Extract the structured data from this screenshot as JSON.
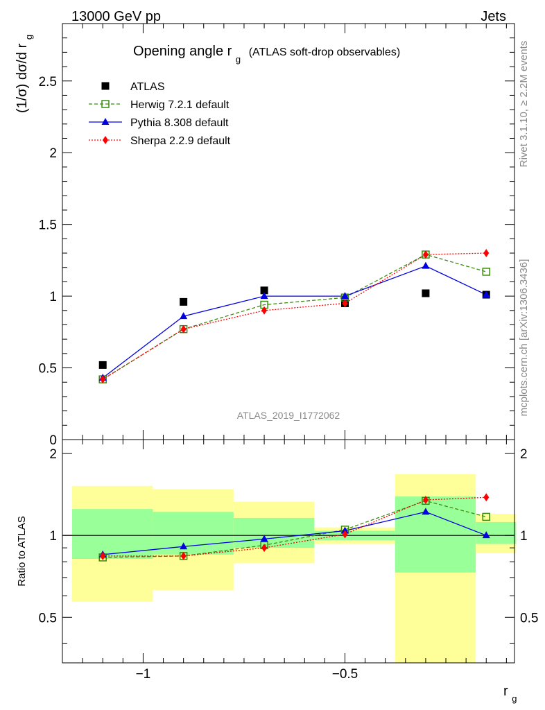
{
  "header": {
    "left": "13000 GeV pp",
    "right": "Jets"
  },
  "side_text": {
    "rivet": "Rivet 3.1.10, ≥ 2.2M events",
    "source": "mcplots.cern.ch [arXiv:1306.3436]"
  },
  "analysis_id": "ATLAS_2019_I1772062",
  "chart_data": [
    {
      "type": "line",
      "title": "Opening angle r",
      "title_sub": "g",
      "title_extra": "(ATLAS soft-drop observables)",
      "ylabel": "(1/σ) dσ/d r",
      "ylabel_sub": "g",
      "xlabel": "r",
      "xlabel_sub": "g",
      "xlim": [
        -1.2,
        -0.08
      ],
      "ylim": [
        0,
        2.9
      ],
      "yticks": [
        0,
        0.5,
        1,
        1.5,
        2,
        2.5
      ],
      "ytick_labels": [
        "0",
        "0.5",
        "1",
        "1.5",
        "2",
        "2.5"
      ],
      "legend_position": "top-left",
      "x": [
        -1.1,
        -0.9,
        -0.7,
        -0.5,
        -0.3,
        -0.15
      ],
      "series": [
        {
          "name": "ATLAS",
          "style": "data",
          "color": "#000000",
          "marker": "square",
          "values": [
            0.52,
            0.96,
            1.04,
            0.95,
            1.02,
            1.01
          ]
        },
        {
          "name": "Herwig 7.2.1 default",
          "style": "dashed",
          "color": "#3a8a10",
          "marker": "open-square",
          "values": [
            0.42,
            0.77,
            0.94,
            0.99,
            1.29,
            1.17
          ]
        },
        {
          "name": "Pythia 8.308 default",
          "style": "solid",
          "color": "#0000e0",
          "marker": "triangle",
          "values": [
            0.43,
            0.86,
            1.0,
            1.0,
            1.21,
            1.01
          ]
        },
        {
          "name": "Sherpa 2.2.9 default",
          "style": "dotted",
          "color": "#ff0000",
          "marker": "diamond",
          "values": [
            0.42,
            0.77,
            0.9,
            0.95,
            1.29,
            1.3
          ]
        }
      ]
    },
    {
      "type": "line",
      "ylabel": "Ratio to ATLAS",
      "xlabel": "r",
      "xlabel_sub": "g",
      "xlim": [
        -1.2,
        -0.08
      ],
      "ylim": [
        0.34,
        2.25
      ],
      "yticks": [
        0.5,
        1,
        2
      ],
      "ytick_labels": [
        "0.5",
        "1",
        "2"
      ],
      "xticks": [
        -1,
        -0.5
      ],
      "xtick_labels": [
        "−1",
        "−0.5"
      ],
      "x": [
        -1.1,
        -0.9,
        -0.7,
        -0.5,
        -0.3,
        -0.15
      ],
      "bands": [
        {
          "x0": -1.2,
          "x1": -1.0,
          "yellow": [
            0.57,
            1.52
          ],
          "green": [
            0.82,
            1.25
          ]
        },
        {
          "x0": -1.0,
          "x1": -0.8,
          "yellow": [
            0.63,
            1.48
          ],
          "green": [
            0.85,
            1.22
          ]
        },
        {
          "x0": -0.8,
          "x1": -0.6,
          "yellow": [
            0.79,
            1.33
          ],
          "green": [
            0.9,
            1.16
          ]
        },
        {
          "x0": -0.6,
          "x1": -0.4,
          "yellow": [
            0.93,
            1.07
          ],
          "green": [
            0.96,
            1.04
          ]
        },
        {
          "x0": -0.4,
          "x1": -0.2,
          "yellow": [
            0.34,
            1.68
          ],
          "green": [
            0.73,
            1.39
          ]
        },
        {
          "x0": -0.2,
          "x1": -0.1,
          "yellow": [
            0.86,
            1.2
          ],
          "green": [
            0.93,
            1.12
          ]
        }
      ],
      "series": [
        {
          "name": "Herwig 7.2.1 default",
          "style": "dashed",
          "color": "#3a8a10",
          "marker": "open-square",
          "values": [
            0.83,
            0.84,
            0.92,
            1.05,
            1.34,
            1.17
          ]
        },
        {
          "name": "Pythia 8.308 default",
          "style": "solid",
          "color": "#0000e0",
          "marker": "triangle",
          "values": [
            0.85,
            0.91,
            0.97,
            1.04,
            1.22,
            1.0
          ]
        },
        {
          "name": "Sherpa 2.2.9 default",
          "style": "dotted",
          "color": "#ff0000",
          "marker": "diamond",
          "values": [
            0.84,
            0.84,
            0.9,
            1.01,
            1.35,
            1.38
          ]
        }
      ]
    }
  ],
  "colors": {
    "band_yellow": "#ffff99",
    "band_green": "#99ff99",
    "reference_line": "#000000"
  }
}
